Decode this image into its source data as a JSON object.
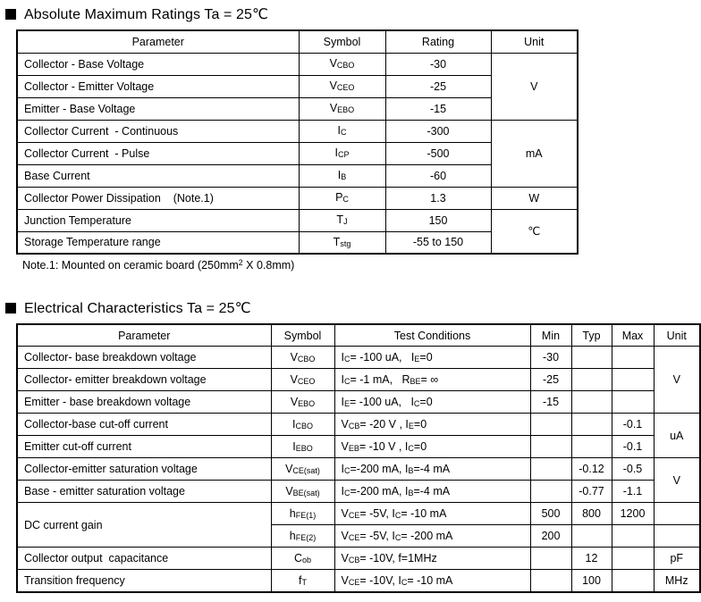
{
  "sections": {
    "abs_max": {
      "title": "Absolute Maximum Ratings Ta = 25℃",
      "note": "Note.1: Mounted on ceramic board (250mm^2^  X  0.8mm)",
      "headers": [
        "Parameter",
        "Symbol",
        "Rating",
        "Unit"
      ],
      "rows": [
        {
          "parameter": "Collector - Base Voltage",
          "symbol": "V~CBO~",
          "rating": "-30",
          "unit": "V"
        },
        {
          "parameter": "Collector - Emitter Voltage",
          "symbol": "V~CEO~",
          "rating": "-25"
        },
        {
          "parameter": "Emitter - Base Voltage",
          "symbol": "V~EBO~",
          "rating": "-15"
        },
        {
          "parameter": "Collector Current  - Continuous",
          "symbol": "I~C~",
          "rating": "-300",
          "unit": "mA"
        },
        {
          "parameter": "Collector Current  - Pulse",
          "symbol": "I~CP~",
          "rating": "-500"
        },
        {
          "parameter": "Base Current",
          "symbol": "I~B~",
          "rating": "-60"
        },
        {
          "parameter": "Collector Power Dissipation    (Note.1)",
          "symbol": "P~C~",
          "rating": "1.3",
          "unit": "W"
        },
        {
          "parameter": "Junction Temperature",
          "symbol": "T~J~",
          "rating": "150",
          "unit": "℃"
        },
        {
          "parameter": "Storage Temperature range",
          "symbol": "T~stg~",
          "rating": "-55 to 150"
        }
      ]
    },
    "electrical": {
      "title": "Electrical Characteristics Ta = 25℃",
      "headers": [
        "Parameter",
        "Symbol",
        "Test Conditions",
        "Min",
        "Typ",
        "Max",
        "Unit"
      ],
      "rows": [
        {
          "parameter": "Collector- base breakdown voltage",
          "symbol": "V~CBO~",
          "conditions": "I~C~= -100 uA,   I~E~=0",
          "min": "-30",
          "typ": "",
          "max": "",
          "unit": "V"
        },
        {
          "parameter": "Collector- emitter breakdown voltage",
          "symbol": "V~CEO~",
          "conditions": "I~C~= -1 mA,   R~BE~= ∞",
          "min": "-25",
          "typ": "",
          "max": ""
        },
        {
          "parameter": "Emitter - base breakdown voltage",
          "symbol": "V~EBO~",
          "conditions": "I~E~= -100 uA,   I~C~=0",
          "min": "-15",
          "typ": "",
          "max": ""
        },
        {
          "parameter": "Collector-base cut-off current",
          "symbol": "I~CBO~",
          "conditions": "V~CB~= -20 V , I~E~=0",
          "min": "",
          "typ": "",
          "max": "-0.1",
          "unit": "uA"
        },
        {
          "parameter": "Emitter cut-off current",
          "symbol": "I~EBO~",
          "conditions": "V~EB~= -10 V , I~C~=0",
          "min": "",
          "typ": "",
          "max": "-0.1"
        },
        {
          "parameter": "Collector-emitter saturation voltage",
          "symbol": "V~CE(sat)~",
          "conditions": "I~C~=-200 mA, I~B~=-4 mA",
          "min": "",
          "typ": "-0.12",
          "max": "-0.5",
          "unit": "V"
        },
        {
          "parameter": "Base - emitter saturation voltage",
          "symbol": "V~BE(sat)~",
          "conditions": "I~C~=-200 mA, I~B~=-4 mA",
          "min": "",
          "typ": "-0.77",
          "max": "-1.1"
        },
        {
          "parameter": "DC current gain",
          "symbol": "h~FE(1)~",
          "conditions": "V~CE~= -5V, I~C~= -10 mA",
          "min": "500",
          "typ": "800",
          "max": "1200",
          "unit": ""
        },
        {
          "symbol": "h~FE(2)~",
          "conditions": "V~CE~= -5V, I~C~= -200 mA",
          "min": "200",
          "typ": "",
          "max": "",
          "unit": ""
        },
        {
          "parameter": "Collector output  capacitance",
          "symbol": "C~ob~",
          "conditions": "V~CB~= -10V, f=1MHz",
          "min": "",
          "typ": "12",
          "max": "",
          "unit": "pF"
        },
        {
          "parameter": "Transition frequency",
          "symbol": "f~T~",
          "conditions": "V~CE~= -10V, I~C~= -10 mA",
          "min": "",
          "typ": "100",
          "max": "",
          "unit": "MHz"
        }
      ]
    }
  }
}
